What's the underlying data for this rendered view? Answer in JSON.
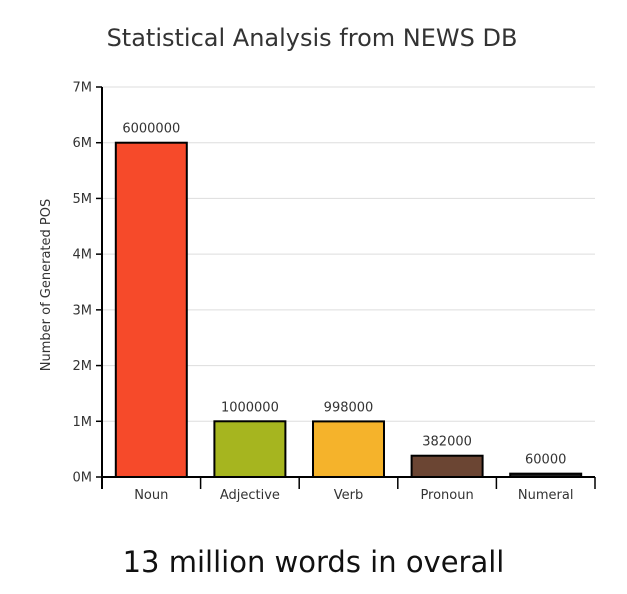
{
  "chart_data": {
    "type": "bar",
    "title": "Statistical Analysis from NEWS DB",
    "xlabel": "",
    "ylabel": "Number of Generated POS",
    "categories": [
      "Noun",
      "Adjective",
      "Verb",
      "Pronoun",
      "Numeral"
    ],
    "values": [
      6000000,
      1000000,
      998000,
      382000,
      60000
    ],
    "value_labels": [
      "6000000",
      "1000000",
      "998000",
      "382000",
      "60000"
    ],
    "colors": [
      "#f64a2a",
      "#a6b51f",
      "#f5b32b",
      "#6b4533",
      "#1e1e1e"
    ],
    "ylim": [
      0,
      7000000
    ],
    "yticks": [
      0,
      1000000,
      2000000,
      3000000,
      4000000,
      5000000,
      6000000,
      7000000
    ],
    "ytick_labels": [
      "0M",
      "1M",
      "2M",
      "3M",
      "4M",
      "5M",
      "6M",
      "7M"
    ],
    "grid": true,
    "legend": "none"
  },
  "footer": {
    "text": "13 million words in overall"
  }
}
